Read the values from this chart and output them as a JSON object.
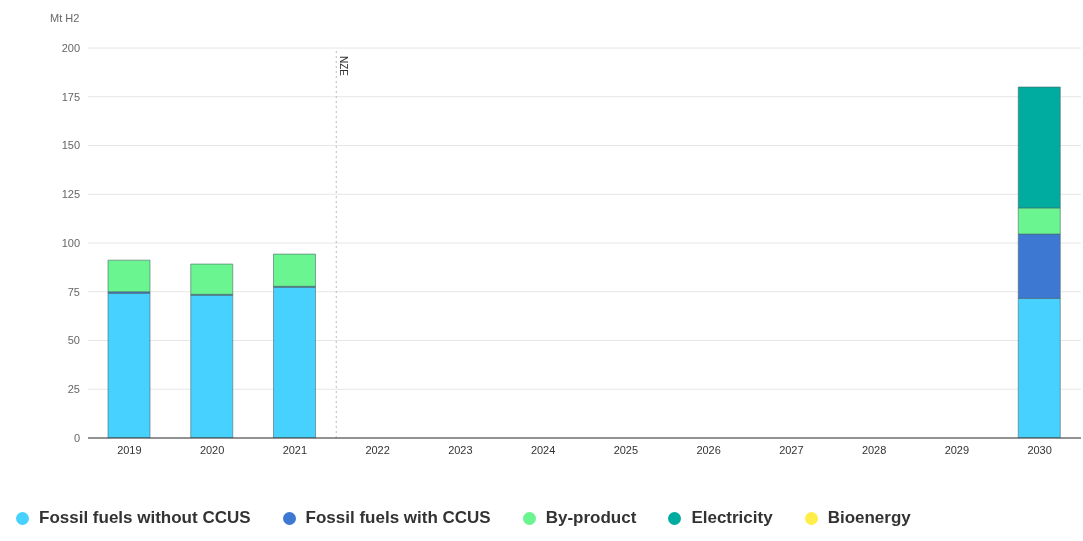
{
  "chart_data": {
    "type": "bar",
    "stacked": true,
    "ylabel": "Mt H2",
    "categories": [
      "2019",
      "2020",
      "2021",
      "2022",
      "2023",
      "2024",
      "2025",
      "2026",
      "2027",
      "2028",
      "2029",
      "2030"
    ],
    "series": [
      {
        "name": "Fossil fuels without CCUS",
        "color": "#47d1ff",
        "values": [
          74.2,
          73.2,
          77.3,
          null,
          null,
          null,
          null,
          null,
          null,
          null,
          null,
          71.6
        ]
      },
      {
        "name": "Fossil fuels with CCUS",
        "color": "#3d78d3",
        "values": [
          0.8,
          0.5,
          0.5,
          null,
          null,
          null,
          null,
          null,
          null,
          null,
          null,
          33
        ]
      },
      {
        "name": "By-product",
        "color": "#6af590",
        "values": [
          16.2,
          15.5,
          16.5,
          null,
          null,
          null,
          null,
          null,
          null,
          null,
          null,
          13.4
        ]
      },
      {
        "name": "Electricity",
        "color": "#00ab9f",
        "values": [
          0,
          0,
          0,
          null,
          null,
          null,
          null,
          null,
          null,
          null,
          null,
          62
        ]
      },
      {
        "name": "Bioenergy",
        "color": "#ffee4a",
        "values": [
          0,
          0,
          0,
          null,
          null,
          null,
          null,
          null,
          null,
          null,
          null,
          0
        ]
      }
    ],
    "ylim": [
      0,
      200
    ],
    "yticks": [
      0,
      25,
      50,
      75,
      100,
      125,
      150,
      175,
      200
    ],
    "grid": "y",
    "legend": "bottom",
    "ref_lines": [
      {
        "axis": "x",
        "value": "2022",
        "label": "NZE",
        "line_style": "dotted",
        "color": "#bbbbbb"
      }
    ]
  }
}
